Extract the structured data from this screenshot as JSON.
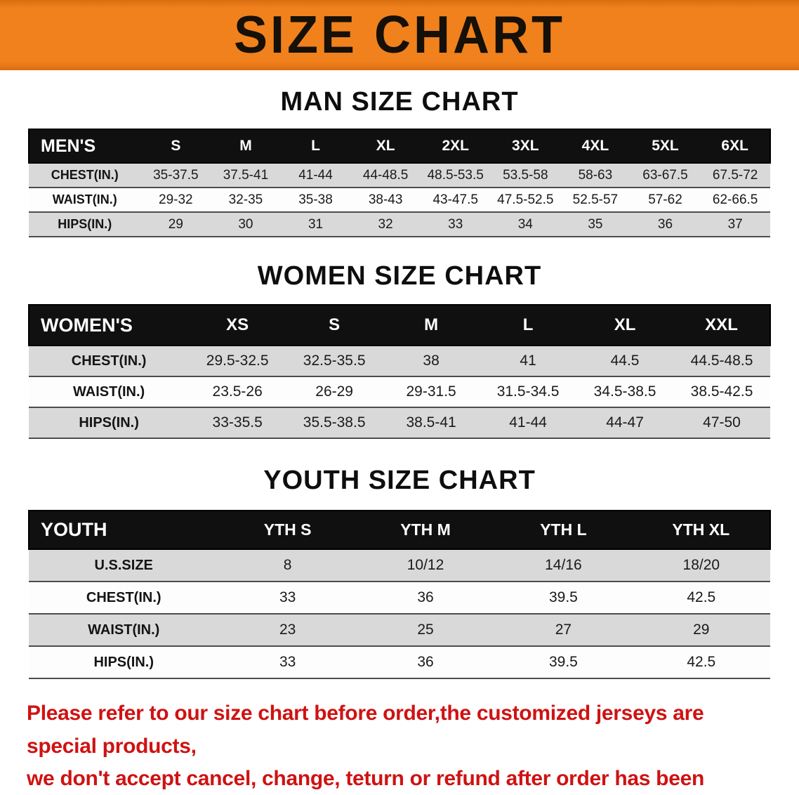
{
  "banner": {
    "title": "SIZE CHART",
    "bg_color": "#F0811D",
    "text_color": "#151008"
  },
  "sections": [
    {
      "heading": "MAN SIZE CHART",
      "table": {
        "title": "MEN'S",
        "columns": [
          "S",
          "M",
          "L",
          "XL",
          "2XL",
          "3XL",
          "4XL",
          "5XL",
          "6XL"
        ],
        "rows": [
          {
            "label": "CHEST(IN.)",
            "values": [
              "35-37.5",
              "37.5-41",
              "41-44",
              "44-48.5",
              "48.5-53.5",
              "53.5-58",
              "58-63",
              "63-67.5",
              "67.5-72"
            ]
          },
          {
            "label": "WAIST(IN.)",
            "values": [
              "29-32",
              "32-35",
              "35-38",
              "38-43",
              "43-47.5",
              "47.5-52.5",
              "52.5-57",
              "57-62",
              "62-66.5"
            ]
          },
          {
            "label": "HIPS(IN.)",
            "values": [
              "29",
              "30",
              "31",
              "32",
              "33",
              "34",
              "35",
              "36",
              "37"
            ]
          }
        ]
      }
    },
    {
      "heading": "WOMEN SIZE CHART",
      "table": {
        "title": "WOMEN'S",
        "columns": [
          "XS",
          "S",
          "M",
          "L",
          "XL",
          "XXL"
        ],
        "rows": [
          {
            "label": "CHEST(IN.)",
            "values": [
              "29.5-32.5",
              "32.5-35.5",
              "38",
              "41",
              "44.5",
              "44.5-48.5"
            ]
          },
          {
            "label": "WAIST(IN.)",
            "values": [
              "23.5-26",
              "26-29",
              "29-31.5",
              "31.5-34.5",
              "34.5-38.5",
              "38.5-42.5"
            ]
          },
          {
            "label": "HIPS(IN.)",
            "values": [
              "33-35.5",
              "35.5-38.5",
              "38.5-41",
              "41-44",
              "44-47",
              "47-50"
            ]
          }
        ]
      }
    },
    {
      "heading": "YOUTH SIZE CHART",
      "table": {
        "title": "YOUTH",
        "columns": [
          "YTH S",
          "YTH M",
          "YTH L",
          "YTH XL"
        ],
        "rows": [
          {
            "label": "U.S.SIZE",
            "values": [
              "8",
              "10/12",
              "14/16",
              "18/20"
            ]
          },
          {
            "label": "CHEST(IN.)",
            "values": [
              "33",
              "36",
              "39.5",
              "42.5"
            ]
          },
          {
            "label": "WAIST(IN.)",
            "values": [
              "23",
              "25",
              "27",
              "29"
            ]
          },
          {
            "label": "HIPS(IN.)",
            "values": [
              "33",
              "36",
              "39.5",
              "42.5"
            ]
          }
        ]
      }
    }
  ],
  "footer": {
    "lines": [
      "Please refer to our size chart before order,the customized jerseys are special products,",
      "we don't accept cancel, change, teturn or refund after order has been placed!"
    ],
    "text_color": "#CF1212"
  },
  "colors": {
    "table_header_bg": "#101010",
    "row_shade": "#D9D9D9",
    "banner_orange": "#F0811D",
    "notice_red": "#CF1212"
  }
}
